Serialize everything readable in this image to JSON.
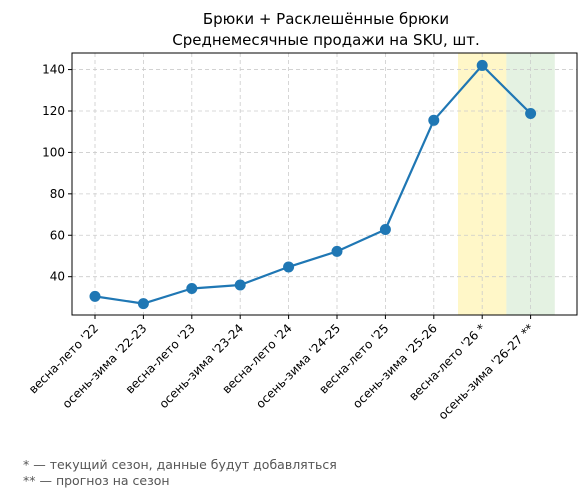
{
  "chart_data": {
    "type": "line",
    "title_lines": [
      "Брюки + Расклешённые брюки",
      "Среднемесячные продажи на SKU, шт."
    ],
    "xlabel": "",
    "ylabel": "",
    "categories": [
      "весна-лето '22",
      "осень-зима '22-23",
      "весна-лето '23",
      "осень-зима '23-24",
      "весна-лето '24",
      "осень-зима '24-25",
      "весна-лето '25",
      "осень-зима '25-26",
      "весна-лето '26 *",
      "осень-зима '26-27 **"
    ],
    "values": [
      30.5,
      27,
      34.3,
      36,
      44.7,
      52.2,
      62.8,
      115.5,
      142,
      118.8
    ],
    "ylim": [
      21.5,
      148
    ],
    "yticks": [
      40,
      60,
      80,
      100,
      120,
      140
    ],
    "grid": true,
    "line_color": "#1f77b4",
    "highlight_bands": [
      {
        "category": "весна-лето '26 *",
        "color": "#fff3b0"
      },
      {
        "category": "осень-зима '26-27 **",
        "color": "#d9ecd6"
      }
    ],
    "footnotes": [
      "* — текущий сезон, данные будут добавляться",
      "** — прогноз на сезон"
    ]
  }
}
